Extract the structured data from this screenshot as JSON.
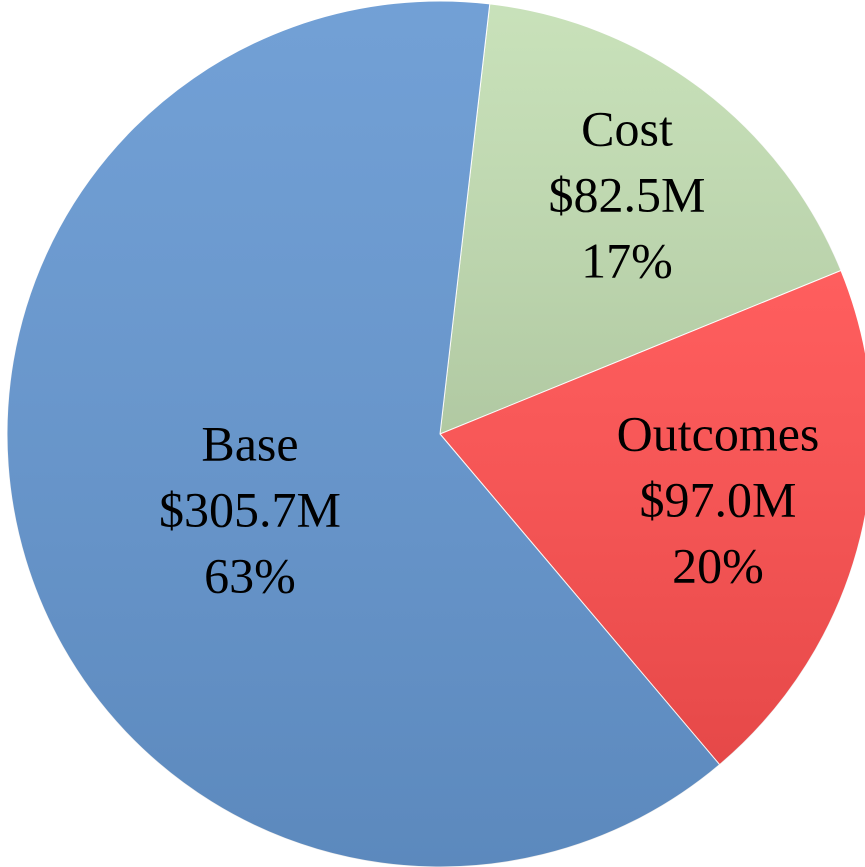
{
  "chart_data": {
    "type": "pie",
    "categories": [
      "Cost",
      "Outcomes",
      "Base"
    ],
    "values": [
      82.5,
      97.0,
      305.7
    ],
    "value_labels": [
      "$82.5M",
      "$97.0M",
      "$305.7M"
    ],
    "percentages": [
      17,
      20,
      63
    ],
    "percentage_labels": [
      "17%",
      "20%",
      "63%"
    ],
    "colors": [
      "#c4dfb4",
      "#ff5050",
      "#6698d2"
    ]
  }
}
